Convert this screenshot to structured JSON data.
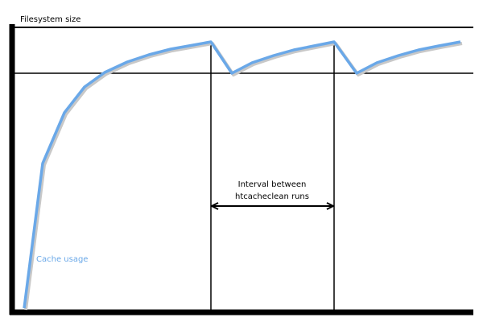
{
  "labels": {
    "y_axis": "Filesystem size",
    "curve": "Cache usage",
    "interval": [
      "Interval between",
      "htcacheclean runs"
    ]
  }
}
